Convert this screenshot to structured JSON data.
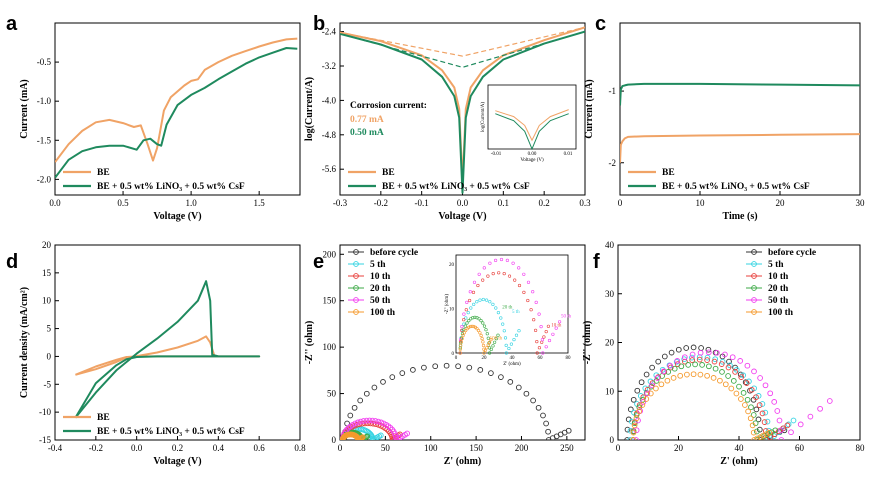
{
  "colors": {
    "be": "#f0a366",
    "additive": "#1f8a5e",
    "axis": "#000000",
    "eis": [
      "#333333",
      "#35d3e2",
      "#e8413d",
      "#3daa47",
      "#f23ef0",
      "#f59a2d"
    ]
  },
  "chart_data": [
    {
      "id": "a",
      "letter": "a",
      "type": "line",
      "xlabel": "Voltage (V)",
      "ylabel": "Current (mA)",
      "xlim": [
        0.0,
        1.8
      ],
      "ylim": [
        -2.2,
        0.0
      ],
      "xticks": [
        0.0,
        0.5,
        1.0,
        1.5
      ],
      "yticks": [
        -0.5,
        -1.0,
        -1.5,
        -2.0
      ],
      "xtick_labels": [
        "0.0",
        "0.5",
        "1.0",
        "1.5"
      ],
      "ytick_labels": [
        "-0.5",
        "-1.0",
        "-1.5",
        "-2.0"
      ],
      "legend_position": "bottom-left",
      "series": [
        {
          "name": "BE",
          "color": "be",
          "x": [
            0.0,
            0.1,
            0.2,
            0.3,
            0.4,
            0.5,
            0.58,
            0.63,
            0.68,
            0.72,
            0.75,
            0.8,
            0.85,
            0.95,
            1.0,
            1.05,
            1.1,
            1.2,
            1.3,
            1.4,
            1.5,
            1.6,
            1.7,
            1.78
          ],
          "y": [
            -1.78,
            -1.55,
            -1.38,
            -1.27,
            -1.24,
            -1.28,
            -1.33,
            -1.31,
            -1.55,
            -1.76,
            -1.6,
            -1.12,
            -0.95,
            -0.8,
            -0.74,
            -0.72,
            -0.6,
            -0.5,
            -0.42,
            -0.36,
            -0.3,
            -0.25,
            -0.21,
            -0.2
          ]
        },
        {
          "name": "BE + 0.5 wt% LiNO₃ + 0.5 wt% CsF",
          "color": "additive",
          "x": [
            0.0,
            0.1,
            0.2,
            0.3,
            0.4,
            0.5,
            0.6,
            0.65,
            0.7,
            0.75,
            0.78,
            0.82,
            0.9,
            1.0,
            1.1,
            1.2,
            1.3,
            1.4,
            1.5,
            1.6,
            1.7,
            1.78
          ],
          "y": [
            -1.98,
            -1.75,
            -1.64,
            -1.59,
            -1.57,
            -1.57,
            -1.62,
            -1.5,
            -1.48,
            -1.55,
            -1.57,
            -1.3,
            -1.05,
            -0.92,
            -0.83,
            -0.72,
            -0.62,
            -0.52,
            -0.44,
            -0.38,
            -0.32,
            -0.33
          ]
        }
      ]
    },
    {
      "id": "b",
      "letter": "b",
      "type": "line",
      "xlabel": "Voltage (V)",
      "ylabel": "log(Current/A)",
      "xlim": [
        -0.3,
        0.3
      ],
      "ylim": [
        -6.2,
        -2.2
      ],
      "xticks": [
        -0.3,
        -0.2,
        -0.1,
        0.0,
        0.1,
        0.2,
        0.3
      ],
      "yticks": [
        -2.4,
        -3.2,
        -4.0,
        -4.8,
        -5.6
      ],
      "xtick_labels": [
        "-0.3",
        "-0.2",
        "-0.1",
        "0.0",
        "0.1",
        "0.2",
        "0.3"
      ],
      "ytick_labels": [
        "-2.4",
        "-3.2",
        "-4.0",
        "-4.8",
        "-5.6"
      ],
      "legend_position": "bottom-left",
      "annotation_title": "Corrosion current:",
      "annotations": [
        {
          "text": "0.77 mA",
          "color": "be"
        },
        {
          "text": "0.50 mA",
          "color": "additive"
        }
      ],
      "series": [
        {
          "name": "BE",
          "color": "be",
          "x": [
            -0.3,
            -0.2,
            -0.1,
            -0.05,
            -0.02,
            -0.008,
            0.0,
            0.008,
            0.02,
            0.05,
            0.1,
            0.2,
            0.3
          ],
          "y": [
            -2.42,
            -2.62,
            -2.95,
            -3.3,
            -3.7,
            -4.2,
            -5.9,
            -4.2,
            -3.7,
            -3.3,
            -2.95,
            -2.6,
            -2.3
          ]
        },
        {
          "name": "BE + 0.5 wt% LiNO₃ + 0.5 wt% CsF",
          "color": "additive",
          "x": [
            -0.3,
            -0.2,
            -0.1,
            -0.05,
            -0.02,
            -0.008,
            0.0,
            0.008,
            0.02,
            0.05,
            0.1,
            0.2,
            0.3
          ],
          "y": [
            -2.45,
            -2.7,
            -3.05,
            -3.45,
            -3.9,
            -4.4,
            -6.15,
            -4.4,
            -3.9,
            -3.45,
            -3.05,
            -2.68,
            -2.4
          ]
        },
        {
          "name": "",
          "color": "be",
          "dashed": true,
          "x": [
            -0.3,
            0.0,
            0.3
          ],
          "y": [
            -2.42,
            -2.97,
            -2.3
          ]
        },
        {
          "name": "",
          "color": "additive",
          "dashed": true,
          "x": [
            -0.3,
            0.0,
            0.3
          ],
          "y": [
            -2.45,
            -3.23,
            -2.4
          ]
        }
      ],
      "inset": {
        "xlabel": "Voltage (V)",
        "ylabel": "log(Current/A)",
        "xtick_labels": [
          "-0.01",
          "0.00",
          "0.01"
        ],
        "series": [
          {
            "color": "be",
            "x": [
              -0.01,
              -0.005,
              -0.002,
              0.0,
              0.002,
              0.005,
              0.01
            ],
            "y": [
              0.65,
              0.55,
              0.4,
              0.15,
              0.4,
              0.55,
              0.67
            ]
          },
          {
            "color": "additive",
            "x": [
              -0.01,
              -0.005,
              -0.002,
              0.0,
              0.002,
              0.005,
              0.01
            ],
            "y": [
              0.6,
              0.48,
              0.3,
              0.0,
              0.3,
              0.48,
              0.6
            ]
          }
        ]
      }
    },
    {
      "id": "c",
      "letter": "c",
      "type": "line",
      "xlabel": "Time (s)",
      "ylabel": "Current (mA)",
      "xlim": [
        0,
        30
      ],
      "ylim": [
        -2.45,
        -0.05
      ],
      "xticks": [
        0,
        10,
        20,
        30
      ],
      "yticks": [
        -1,
        -2
      ],
      "xtick_labels": [
        "0",
        "10",
        "20",
        "30"
      ],
      "ytick_labels": [
        "-1",
        "-2"
      ],
      "legend_position": "bottom-left",
      "series": [
        {
          "name": "BE",
          "color": "be",
          "x": [
            0.0,
            0.1,
            0.3,
            0.6,
            1.0,
            3,
            10,
            20,
            30
          ],
          "y": [
            -2.0,
            -1.75,
            -1.7,
            -1.66,
            -1.64,
            -1.63,
            -1.62,
            -1.61,
            -1.6
          ]
        },
        {
          "name": "BE + 0.5 wt% LiNO₃ + 0.5 wt% CsF",
          "color": "additive",
          "x": [
            0.0,
            0.1,
            0.3,
            0.6,
            1.0,
            3,
            10,
            20,
            30
          ],
          "y": [
            -1.2,
            -0.98,
            -0.93,
            -0.92,
            -0.91,
            -0.9,
            -0.9,
            -0.91,
            -0.92
          ]
        }
      ]
    },
    {
      "id": "d",
      "letter": "d",
      "type": "line",
      "xlabel": "Voltage (V)",
      "ylabel": "Current density (mA/cm²)",
      "xlim": [
        -0.4,
        0.8
      ],
      "ylim": [
        -15,
        20
      ],
      "xticks": [
        -0.4,
        -0.2,
        0.0,
        0.2,
        0.4,
        0.6,
        0.8
      ],
      "yticks": [
        20,
        15,
        10,
        5,
        0,
        -5,
        -10,
        -15
      ],
      "xtick_labels": [
        "-0.4",
        "-0.2",
        "0.0",
        "0.2",
        "0.4",
        "0.6",
        "0.8"
      ],
      "ytick_labels": [
        "20",
        "15",
        "10",
        "5",
        "0",
        "-5",
        "-10",
        "-15"
      ],
      "legend_position": "bottom-left",
      "series": [
        {
          "name": "BE",
          "color": "be",
          "x": [
            -0.3,
            -0.2,
            -0.1,
            -0.05,
            0.0,
            0.1,
            0.2,
            0.3,
            0.34,
            0.36,
            0.38,
            0.4,
            0.5,
            0.6,
            0.5,
            0.4,
            0.3,
            0.2,
            0.1,
            0.0,
            -0.05,
            -0.1,
            -0.2,
            -0.3
          ],
          "y": [
            -3.3,
            -2.3,
            -1.0,
            -0.2,
            0.05,
            0.7,
            1.6,
            2.8,
            3.6,
            2.5,
            0.2,
            0.0,
            0.0,
            0.0,
            0.0,
            0.0,
            0.0,
            0.0,
            0.0,
            0.0,
            -0.1,
            -0.6,
            -1.8,
            -3.3
          ]
        },
        {
          "name": "BE + 0.5 wt% LiNO₃ + 0.5 wt% CsF",
          "color": "additive",
          "x": [
            -0.3,
            -0.2,
            -0.1,
            0.0,
            0.1,
            0.2,
            0.3,
            0.34,
            0.36,
            0.37,
            0.4,
            0.5,
            0.6,
            0.5,
            0.4,
            0.3,
            0.2,
            0.1,
            0.0,
            -0.05,
            -0.1,
            -0.2,
            -0.3
          ],
          "y": [
            -11.0,
            -6.5,
            -2.5,
            0.5,
            3.2,
            6.2,
            10.0,
            13.5,
            10.0,
            0.3,
            0.0,
            0.0,
            0.0,
            0.0,
            0.0,
            0.0,
            0.0,
            0.0,
            -0.1,
            -0.5,
            -1.6,
            -4.8,
            -11.0
          ]
        }
      ]
    },
    {
      "id": "e",
      "letter": "e",
      "type": "scatter",
      "xlabel": "Z' (ohm)",
      "ylabel": "-Z'' (ohm)",
      "xlim": [
        0,
        270
      ],
      "ylim": [
        0,
        210
      ],
      "xticks": [
        0,
        50,
        100,
        150,
        200,
        250
      ],
      "yticks": [
        0,
        50,
        100,
        150,
        200
      ],
      "xtick_labels": [
        "0",
        "50",
        "100",
        "150",
        "200",
        "250"
      ],
      "ytick_labels": [
        "0",
        "50",
        "100",
        "150",
        "200"
      ],
      "legend_position": "top-left",
      "series": [
        {
          "name": "before cycle",
          "color_index": 0,
          "x0": 5,
          "x1": 230,
          "peak": 80,
          "tail_x": 252,
          "tail_y": 10
        },
        {
          "name": "5 th",
          "color_index": 1,
          "x0": 3,
          "x1": 36,
          "peak": 12,
          "tail_x": 45,
          "tail_y": 5
        },
        {
          "name": "10 th",
          "color_index": 2,
          "x0": 3,
          "x1": 58,
          "peak": 18,
          "tail_x": 66,
          "tail_y": 6
        },
        {
          "name": "20 th",
          "color_index": 3,
          "x0": 3,
          "x1": 24,
          "peak": 8,
          "tail_x": 30,
          "tail_y": 4
        },
        {
          "name": "50 th",
          "color_index": 4,
          "x0": 3,
          "x1": 62,
          "peak": 21,
          "tail_x": 74,
          "tail_y": 7
        },
        {
          "name": "100 th",
          "color_index": 5,
          "x0": 3,
          "x1": 20,
          "peak": 6,
          "tail_x": 25,
          "tail_y": 3
        }
      ],
      "inset": {
        "xlabel": "Z' (ohm)",
        "ylabel": "-Z'' (ohm)",
        "xlim": [
          0,
          80
        ],
        "ylim": [
          0,
          22
        ],
        "xtick_labels": [
          "0",
          "20",
          "40",
          "60",
          "80"
        ],
        "ytick_labels": [
          "0",
          "10",
          "20"
        ],
        "labels": [
          {
            "text": "5 th",
            "x": 40,
            "y": 9,
            "color_index": 1
          },
          {
            "text": "10 th",
            "x": 68,
            "y": 6,
            "color_index": 2
          },
          {
            "text": "20 th",
            "x": 33,
            "y": 10,
            "color_index": 3
          },
          {
            "text": "50 th",
            "x": 75,
            "y": 8,
            "color_index": 4
          },
          {
            "text": "100 th",
            "x": 24,
            "y": 3,
            "color_index": 5
          }
        ]
      }
    },
    {
      "id": "f",
      "letter": "f",
      "type": "scatter",
      "xlabel": "Z' (ohm)",
      "ylabel": "-Z'' (ohm)",
      "xlim": [
        0,
        80
      ],
      "ylim": [
        0,
        40
      ],
      "xticks": [
        0,
        20,
        40,
        60,
        80
      ],
      "yticks": [
        0,
        10,
        20,
        30,
        40
      ],
      "xtick_labels": [
        "0",
        "20",
        "40",
        "60",
        "80"
      ],
      "ytick_labels": [
        "0",
        "10",
        "20",
        "30",
        "40"
      ],
      "legend_position": "top-right",
      "series": [
        {
          "name": "before cycle",
          "color_index": 0,
          "x0": 3,
          "x1": 47,
          "peak": 19,
          "tail_x": 55,
          "tail_y": 2
        },
        {
          "name": "5 th",
          "color_index": 1,
          "x0": 4,
          "x1": 50,
          "peak": 17,
          "tail_x": 58,
          "tail_y": 4
        },
        {
          "name": "10 th",
          "color_index": 2,
          "x0": 5,
          "x1": 49,
          "peak": 16.5,
          "tail_x": 56,
          "tail_y": 3
        },
        {
          "name": "20 th",
          "color_index": 3,
          "x0": 5,
          "x1": 46,
          "peak": 15.5,
          "tail_x": 52,
          "tail_y": 2
        },
        {
          "name": "50 th",
          "color_index": 4,
          "x0": 6,
          "x1": 54,
          "peak": 18,
          "tail_x": 70,
          "tail_y": 8
        },
        {
          "name": "100 th",
          "color_index": 5,
          "x0": 5,
          "x1": 45,
          "peak": 13.5,
          "tail_x": 50,
          "tail_y": 1.5
        }
      ]
    }
  ]
}
